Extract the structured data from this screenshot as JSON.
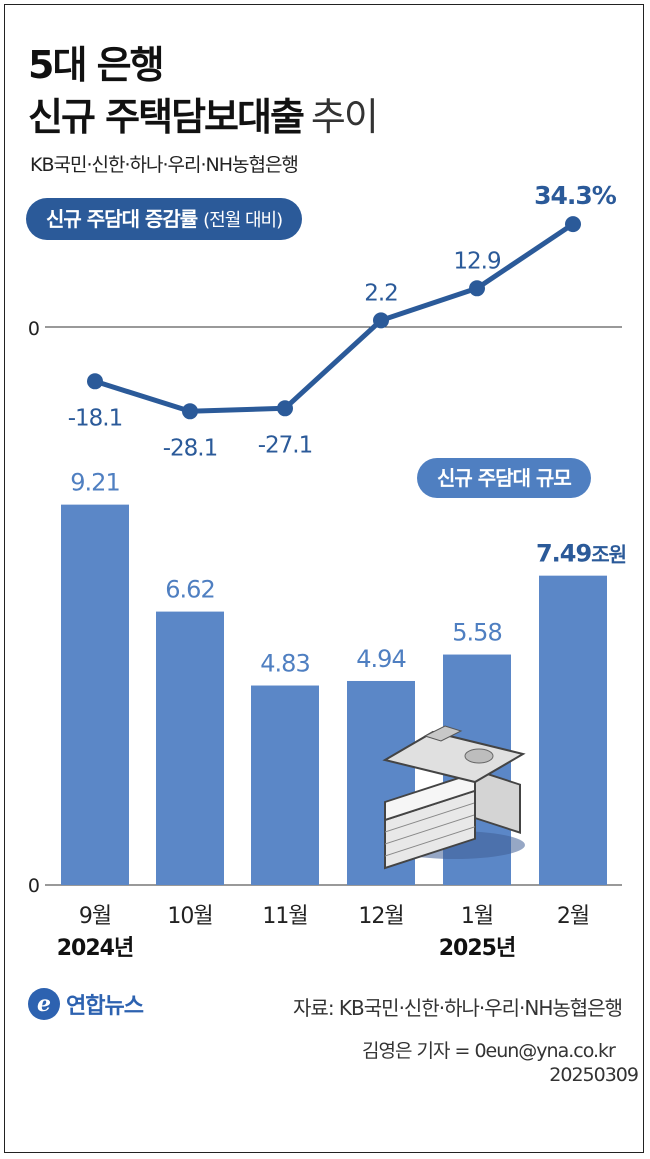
{
  "title": {
    "line1": "5대 은행",
    "line2_bold": "신규 주택담보대출",
    "line2_light": "추이"
  },
  "subtitle": "KB국민·신한·하나·우리·NH농협은행",
  "rate_label": {
    "main": "신규 주담대 증감률",
    "paren": "(전월 대비)"
  },
  "size_label": "신규 주담대 규모",
  "year_labels": {
    "y2024": "2024년",
    "y2025": "2025년"
  },
  "footer": {
    "logo_mark": "e",
    "logo_text": "연합뉴스",
    "source": "자료: KB국민·신한·하나·우리·NH농협은행",
    "reporter": "김영은 기자 = 0eun@yna.co.kr",
    "date": "20250309"
  },
  "colors": {
    "line": "#2b5a99",
    "bar": "#5b87c7",
    "pill_dark": "#2b5a99",
    "pill_light": "#4f7fc1"
  },
  "icon": "money-stack-icon",
  "chart_data": [
    {
      "type": "line",
      "title": "신규 주담대 증감률 (전월 대비)",
      "categories": [
        "9월",
        "10월",
        "11월",
        "12월",
        "1월",
        "2월"
      ],
      "values": [
        -18.1,
        -28.1,
        -27.1,
        2.2,
        12.9,
        34.3
      ],
      "value_labels": [
        "-18.1",
        "-28.1",
        "-27.1",
        "2.2",
        "12.9",
        "34.3%"
      ],
      "zero_label": "0",
      "ylim": [
        -35,
        40
      ]
    },
    {
      "type": "bar",
      "title": "신규 주담대 규모",
      "categories": [
        "9월",
        "10월",
        "11월",
        "12월",
        "1월",
        "2월"
      ],
      "values": [
        9.21,
        6.62,
        4.83,
        4.94,
        5.58,
        7.49
      ],
      "value_labels": [
        "9.21",
        "6.62",
        "4.83",
        "4.94",
        "5.58",
        "7.49"
      ],
      "last_unit": "조원",
      "zero_label": "0",
      "ylim": [
        0,
        10.5
      ]
    }
  ]
}
